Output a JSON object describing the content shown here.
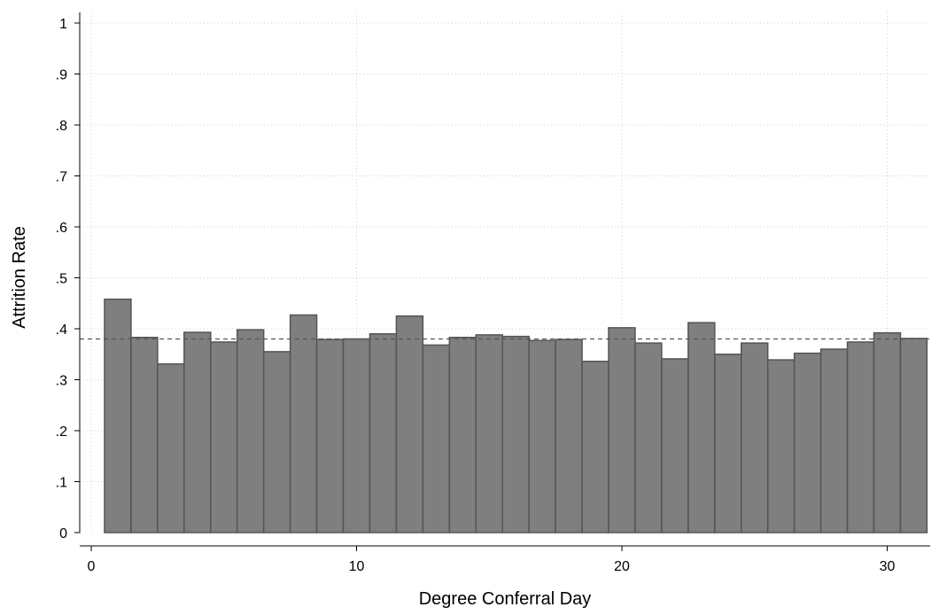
{
  "chart_data": {
    "type": "bar",
    "title": "",
    "xlabel": "Degree Conferral Day",
    "ylabel": "Attrition Rate",
    "x": [
      1,
      2,
      3,
      4,
      5,
      6,
      7,
      8,
      9,
      10,
      11,
      12,
      13,
      14,
      15,
      16,
      17,
      18,
      19,
      20,
      21,
      22,
      23,
      24,
      25,
      26,
      27,
      28,
      29,
      30,
      31
    ],
    "values": [
      0.458,
      0.383,
      0.331,
      0.393,
      0.374,
      0.398,
      0.355,
      0.427,
      0.379,
      0.38,
      0.39,
      0.425,
      0.368,
      0.383,
      0.388,
      0.385,
      0.377,
      0.379,
      0.336,
      0.402,
      0.372,
      0.341,
      0.412,
      0.35,
      0.372,
      0.339,
      0.352,
      0.36,
      0.374,
      0.392,
      0.381
    ],
    "reference_line": {
      "y": 0.38,
      "style": "dashed"
    },
    "xlim": [
      0,
      31.5
    ],
    "ylim": [
      0,
      1
    ],
    "xticks": [
      0,
      10,
      20,
      30
    ],
    "xtick_labels": [
      "0",
      "10",
      "20",
      "30"
    ],
    "yticks": [
      0,
      0.1,
      0.2,
      0.3,
      0.4,
      0.5,
      0.6,
      0.7,
      0.8,
      0.9,
      1
    ],
    "ytick_labels": [
      "0",
      ".1",
      ".2",
      ".3",
      ".4",
      ".5",
      ".6",
      ".7",
      ".8",
      ".9",
      "1"
    ],
    "grid": true,
    "bar_color": "#7f7f7f",
    "bar_edge_color": "#555555",
    "reference_line_color": "#555555"
  }
}
